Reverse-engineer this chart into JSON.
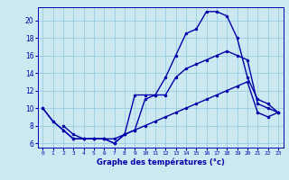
{
  "xlabel": "Graphe des températures (°c)",
  "background_color": "#cce8f0",
  "grid_color": "#99cce0",
  "line_color": "#0000aa",
  "xlim": [
    -0.5,
    23.5
  ],
  "ylim": [
    5.5,
    21.5
  ],
  "yticks": [
    6,
    8,
    10,
    12,
    14,
    16,
    18,
    20
  ],
  "xticks": [
    0,
    1,
    2,
    3,
    4,
    5,
    6,
    7,
    8,
    9,
    10,
    11,
    12,
    13,
    14,
    15,
    16,
    17,
    18,
    19,
    20,
    21,
    22,
    23
  ],
  "line1_x": [
    0,
    1,
    2,
    3,
    4,
    5,
    6,
    7,
    8,
    9,
    10,
    11,
    12,
    13,
    14,
    15,
    16,
    17,
    18,
    19,
    20,
    21,
    22,
    23
  ],
  "line1_y": [
    10,
    8.5,
    7.5,
    6.5,
    6.5,
    6.5,
    6.5,
    6.0,
    7.0,
    7.5,
    11.0,
    11.5,
    13.5,
    16.0,
    18.5,
    19.0,
    21.0,
    21.0,
    20.5,
    18.0,
    13.5,
    11.0,
    10.5,
    9.5
  ],
  "line2_x": [
    0,
    1,
    2,
    3,
    4,
    5,
    6,
    7,
    8,
    9,
    10,
    11,
    12,
    13,
    14,
    15,
    16,
    17,
    18,
    19,
    20,
    21,
    22,
    23
  ],
  "line2_y": [
    10,
    8.5,
    7.5,
    6.5,
    6.5,
    6.5,
    6.5,
    6.0,
    7.0,
    11.5,
    11.5,
    11.5,
    11.5,
    13.5,
    14.5,
    15.0,
    15.5,
    16.0,
    16.5,
    16.0,
    15.5,
    10.5,
    10.0,
    9.5
  ],
  "line3_x": [
    2,
    3,
    4,
    5,
    6,
    7,
    8,
    9,
    10,
    11,
    12,
    13,
    14,
    15,
    16,
    17,
    18,
    19,
    20,
    21,
    22,
    23
  ],
  "line3_y": [
    8.0,
    7.0,
    6.5,
    6.5,
    6.5,
    6.5,
    7.0,
    7.5,
    8.0,
    8.5,
    9.0,
    9.5,
    10.0,
    10.5,
    11.0,
    11.5,
    12.0,
    12.5,
    13.0,
    9.5,
    9.0,
    9.5
  ]
}
